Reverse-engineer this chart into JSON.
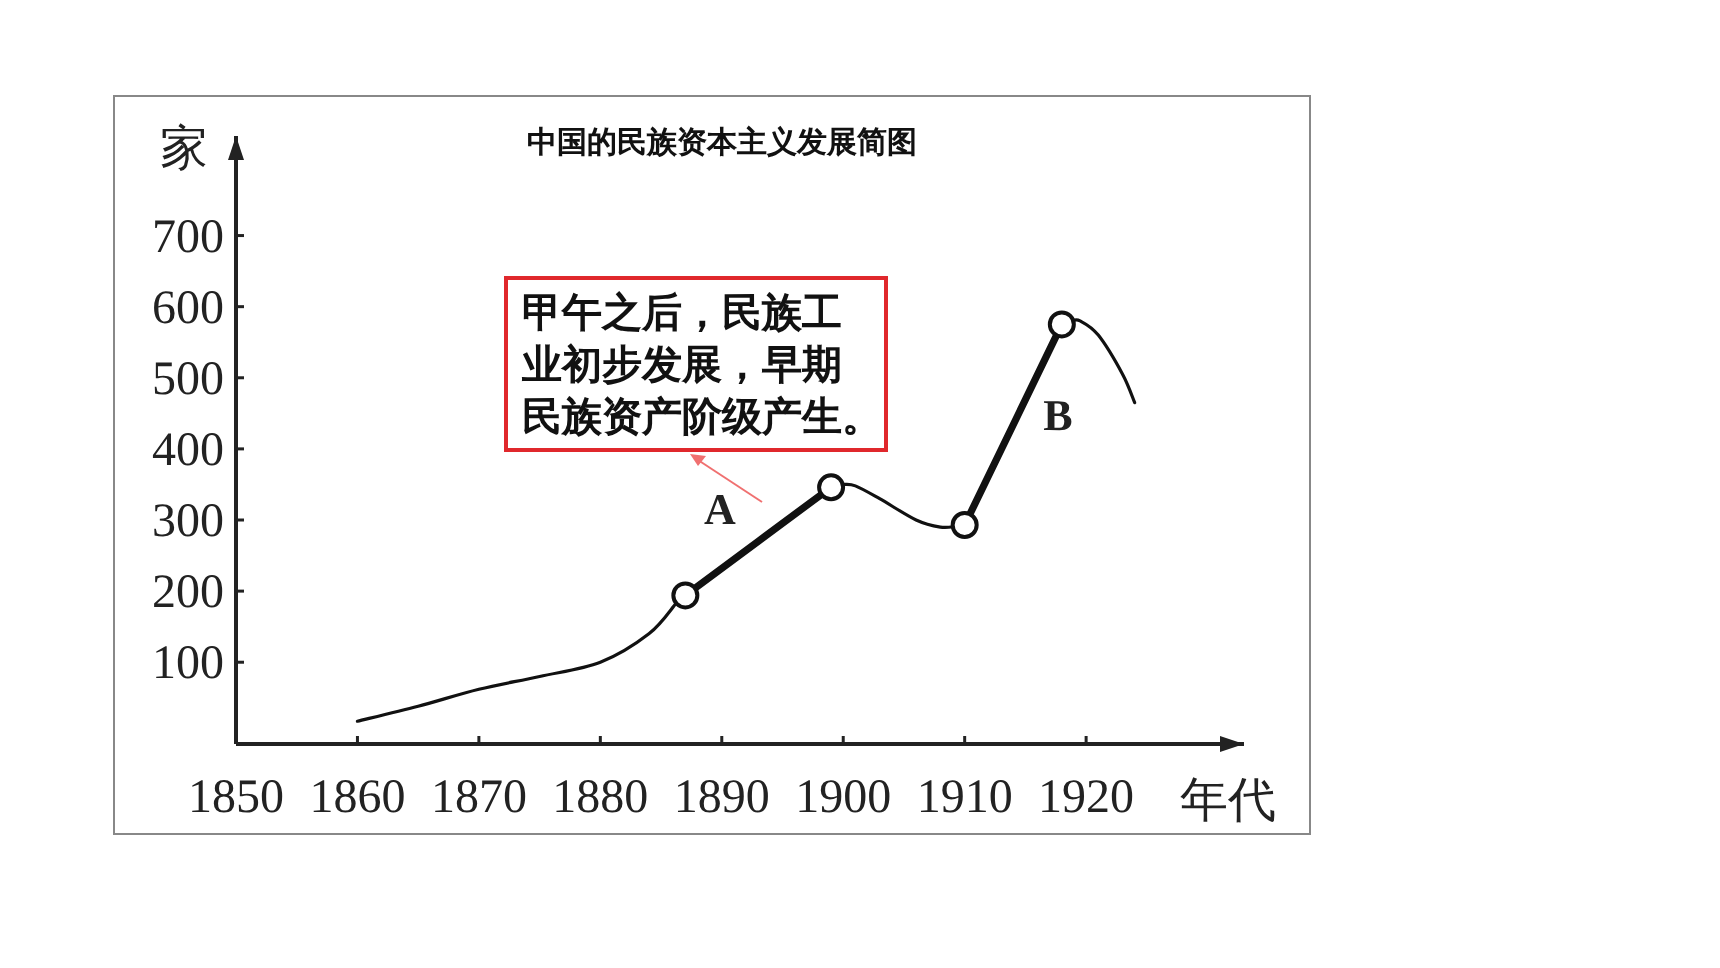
{
  "chart_data": {
    "type": "line",
    "title": "中国的民族资本主义发展简图",
    "xlabel": "年代",
    "ylabel": "家",
    "xlim": [
      1850,
      1933
    ],
    "ylim": [
      -15,
      840
    ],
    "xticks": [
      1850,
      1860,
      1870,
      1880,
      1890,
      1900,
      1910,
      1920
    ],
    "yticks": [
      100,
      200,
      300,
      400,
      500,
      600,
      700
    ],
    "grid": false,
    "marker": "none",
    "line_style": "solid",
    "series": [
      {
        "color": "#111111",
        "x": [
          1860,
          1865,
          1870,
          1875,
          1880,
          1884,
          1886.2
        ],
        "values": [
          17,
          38,
          62,
          80,
          100,
          140,
          182
        ]
      },
      {
        "color": "#111111",
        "x": [
          1900,
          1901,
          1903,
          1906,
          1908,
          1909.3
        ],
        "values": [
          350,
          348,
          330,
          300,
          290,
          291
        ]
      },
      {
        "color": "#111111",
        "x": [
          1918.8,
          1919.5,
          1921,
          1923,
          1924
        ],
        "values": [
          580,
          580,
          560,
          505,
          465
        ]
      },
      {
        "color": "#111111",
        "marker": "circle",
        "x": [
          1887,
          1899
        ],
        "values": [
          194,
          346
        ]
      },
      {
        "color": "#111111",
        "marker": "circle",
        "x": [
          1910,
          1918
        ],
        "values": [
          293,
          575
        ]
      }
    ],
    "annotations": [
      "A",
      "B",
      "甲午之后，民族工业初步发展，早期民族资产阶级产生。"
    ]
  }
}
